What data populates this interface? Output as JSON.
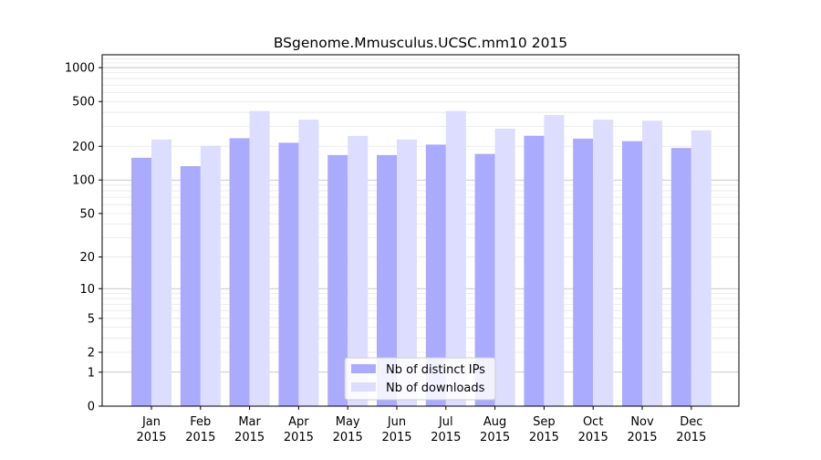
{
  "chart_data": {
    "type": "bar",
    "title": "BSgenome.Mmusculus.UCSC.mm10 2015",
    "xlabel": "",
    "ylabel": "",
    "y_scale": "log1p",
    "ylim": [
      0,
      1300
    ],
    "y_ticks": [
      0,
      1,
      2,
      5,
      10,
      20,
      50,
      100,
      200,
      500,
      1000
    ],
    "y_tick_labels": [
      "0",
      "1",
      "2",
      "5",
      "10",
      "20",
      "50",
      "100",
      "200",
      "500",
      "1000"
    ],
    "grid": true,
    "legend_position": "lower-center",
    "categories": [
      [
        "Jan",
        "2015"
      ],
      [
        "Feb",
        "2015"
      ],
      [
        "Mar",
        "2015"
      ],
      [
        "Apr",
        "2015"
      ],
      [
        "May",
        "2015"
      ],
      [
        "Jun",
        "2015"
      ],
      [
        "Jul",
        "2015"
      ],
      [
        "Aug",
        "2015"
      ],
      [
        "Sep",
        "2015"
      ],
      [
        "Oct",
        "2015"
      ],
      [
        "Nov",
        "2015"
      ],
      [
        "Dec",
        "2015"
      ]
    ],
    "series": [
      {
        "name": "Nb of distinct IPs",
        "color": "#aaaaff",
        "values": [
          158,
          133,
          236,
          215,
          167,
          167,
          207,
          171,
          248,
          234,
          222,
          193
        ]
      },
      {
        "name": "Nb of downloads",
        "color": "#ddddff",
        "values": [
          230,
          202,
          412,
          345,
          247,
          230,
          412,
          287,
          380,
          345,
          338,
          277
        ]
      }
    ]
  }
}
